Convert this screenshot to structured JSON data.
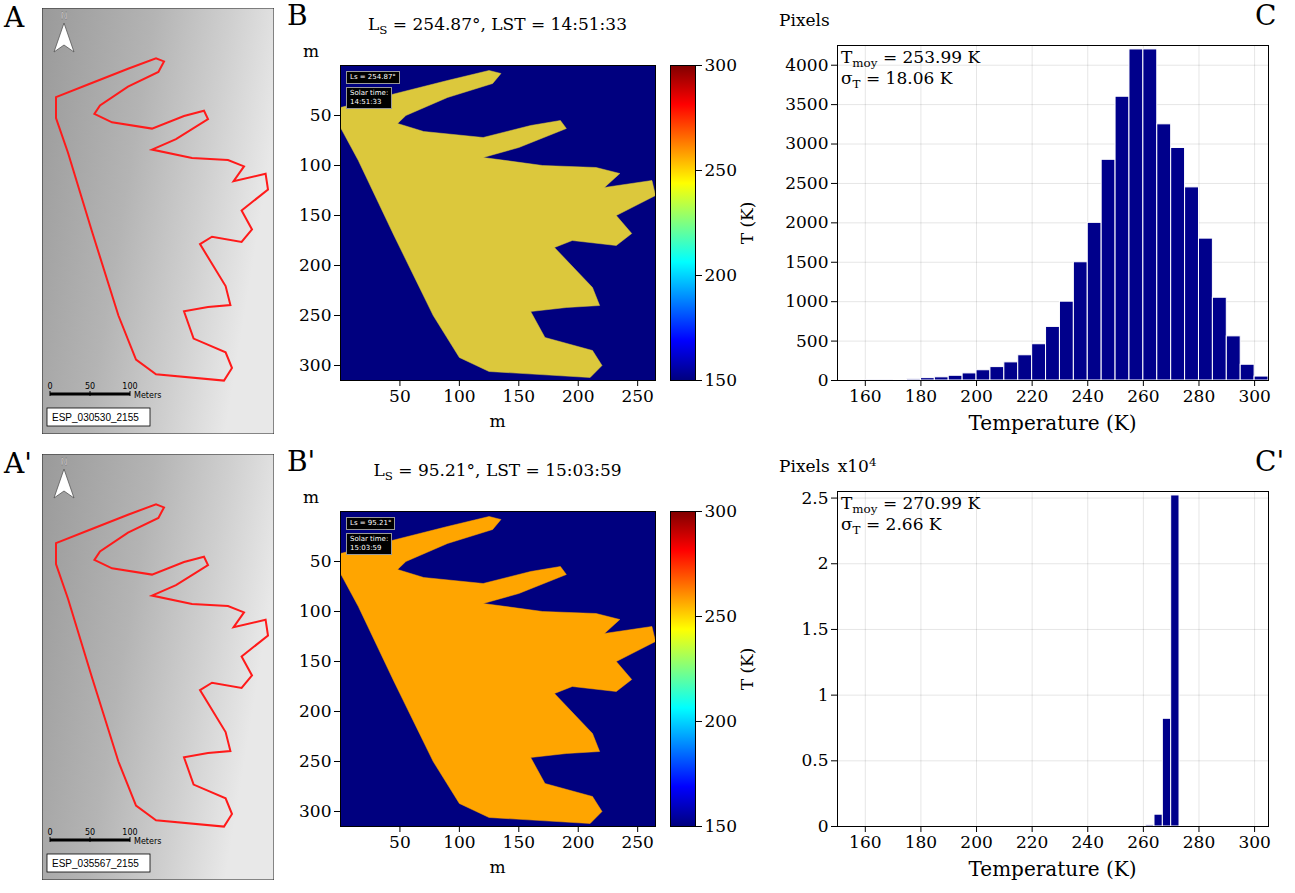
{
  "region_outline": [
    [
      0,
      42
    ],
    [
      40,
      30
    ],
    [
      90,
      15
    ],
    [
      125,
      5
    ],
    [
      135,
      8
    ],
    [
      128,
      18
    ],
    [
      90,
      32
    ],
    [
      55,
      50
    ],
    [
      48,
      58
    ],
    [
      70,
      66
    ],
    [
      120,
      72
    ],
    [
      160,
      60
    ],
    [
      185,
      55
    ],
    [
      190,
      63
    ],
    [
      150,
      82
    ],
    [
      120,
      92
    ],
    [
      170,
      100
    ],
    [
      215,
      102
    ],
    [
      235,
      108
    ],
    [
      222,
      122
    ],
    [
      262,
      115
    ],
    [
      265,
      130
    ],
    [
      232,
      150
    ],
    [
      245,
      168
    ],
    [
      232,
      180
    ],
    [
      195,
      175
    ],
    [
      180,
      182
    ],
    [
      212,
      222
    ],
    [
      218,
      240
    ],
    [
      190,
      242
    ],
    [
      160,
      246
    ],
    [
      172,
      272
    ],
    [
      212,
      285
    ],
    [
      220,
      300
    ],
    [
      210,
      312
    ],
    [
      125,
      306
    ],
    [
      100,
      292
    ],
    [
      78,
      250
    ],
    [
      45,
      170
    ],
    [
      15,
      95
    ],
    [
      0,
      62
    ]
  ],
  "images": [
    {
      "panel": "A",
      "label": "ESP_030530_2155",
      "north": "N",
      "color": "#ff1a1a",
      "scale_bar": {
        "ticks": [
          0,
          50,
          100
        ],
        "unit": "Meters"
      }
    },
    {
      "panel": "A'",
      "label": "ESP_035567_2155",
      "north": "N",
      "color": "#ff1a1a",
      "scale_bar": {
        "ticks": [
          0,
          50,
          100
        ],
        "unit": "Meters"
      }
    }
  ],
  "chart_data": [
    {
      "panel": "B",
      "type": "map",
      "title": {
        "symbol": "L",
        "subscript": "S",
        "text": " = 254.87°, LST = 14:51:33"
      },
      "inset_labels": [
        "Ls = 254.87°",
        "Solar time:",
        "14:51:33"
      ],
      "xlabel": "m",
      "ylabel": "m",
      "xlim": [
        0,
        265
      ],
      "ylim": [
        0,
        315
      ],
      "xticks": [
        50,
        100,
        150,
        200,
        250
      ],
      "yticks": [
        50,
        100,
        150,
        200,
        250,
        300
      ],
      "color": "#dcc83c",
      "colorbar": {
        "label": "T (K)",
        "range": [
          150,
          300
        ],
        "ticks": [
          150,
          200,
          250,
          300
        ]
      }
    },
    {
      "panel": "C",
      "type": "histogram",
      "ylabel": "Pixels",
      "xlabel": "Temperature (K)",
      "annotations": [
        {
          "symbol": "T",
          "subscript": "moy",
          "text": " = 253.99 K"
        },
        {
          "symbol": "σ",
          "subscript": "T",
          "text": " = 18.06 K"
        }
      ],
      "bins": [
        160,
        165,
        170,
        175,
        180,
        185,
        190,
        195,
        200,
        205,
        210,
        215,
        220,
        225,
        230,
        235,
        240,
        245,
        250,
        255,
        260,
        265,
        270,
        275,
        280,
        285,
        290,
        295,
        300,
        305
      ],
      "values": [
        5,
        5,
        10,
        15,
        30,
        40,
        60,
        90,
        130,
        170,
        230,
        320,
        460,
        680,
        1000,
        1500,
        2000,
        2800,
        3600,
        4200,
        4200,
        3250,
        2950,
        2450,
        1800,
        1050,
        560,
        200,
        50
      ],
      "color": "#00008b",
      "xlim": [
        150,
        305
      ],
      "xticks": [
        160,
        180,
        200,
        220,
        240,
        260,
        280,
        300
      ],
      "ylim": [
        0,
        4250
      ],
      "yticks": [
        0,
        500,
        1000,
        1500,
        2000,
        2500,
        3000,
        3500,
        4000
      ],
      "grid": true
    },
    {
      "panel": "B'",
      "type": "map",
      "title": {
        "symbol": "L",
        "subscript": "S",
        "text": " = 95.21°, LST = 15:03:59"
      },
      "inset_labels": [
        "Ls = 95.21°",
        "Solar time:",
        "15:03:59"
      ],
      "xlabel": "m",
      "ylabel": "m",
      "xlim": [
        0,
        265
      ],
      "ylim": [
        0,
        315
      ],
      "xticks": [
        50,
        100,
        150,
        200,
        250
      ],
      "yticks": [
        50,
        100,
        150,
        200,
        250,
        300
      ],
      "color": "#ffa500",
      "colorbar": {
        "label": "T (K)",
        "range": [
          150,
          300
        ],
        "ticks": [
          150,
          200,
          250,
          300
        ]
      }
    },
    {
      "panel": "C'",
      "type": "histogram",
      "ylabel": "Pixels",
      "ylabel_suffix": {
        "text": "x10",
        "superscript": "4"
      },
      "xlabel": "Temperature (K)",
      "annotations": [
        {
          "symbol": "T",
          "subscript": "moy",
          "text": " = 270.99 K"
        },
        {
          "symbol": "σ",
          "subscript": "T",
          "text": " = 2.66 K"
        }
      ],
      "bins": [
        261,
        264,
        267,
        270,
        273
      ],
      "values": [
        0.01,
        0.09,
        0.82,
        2.52
      ],
      "color": "#00008b",
      "xlim": [
        150,
        305
      ],
      "xticks": [
        160,
        180,
        200,
        220,
        240,
        260,
        280,
        300
      ],
      "ylim": [
        0,
        2.55
      ],
      "yticks": [
        0,
        0.5,
        1,
        1.5,
        2,
        2.5
      ],
      "grid": true
    }
  ]
}
